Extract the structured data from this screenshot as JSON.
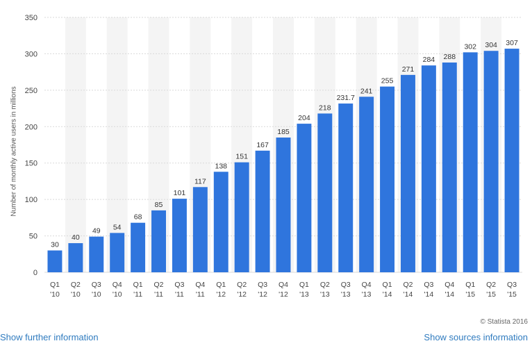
{
  "chart_data": {
    "type": "bar",
    "ylabel": "Number of monthly active users in millions",
    "ylim": [
      0,
      350
    ],
    "yticks": [
      0,
      50,
      100,
      150,
      200,
      250,
      300,
      350
    ],
    "grid": true,
    "categories": [
      [
        "Q1",
        "'10"
      ],
      [
        "Q2",
        "'10"
      ],
      [
        "Q3",
        "'10"
      ],
      [
        "Q4",
        "'10"
      ],
      [
        "Q1",
        "'11"
      ],
      [
        "Q2",
        "'11"
      ],
      [
        "Q3",
        "'11"
      ],
      [
        "Q4",
        "'11"
      ],
      [
        "Q1",
        "'12"
      ],
      [
        "Q2",
        "'12"
      ],
      [
        "Q3",
        "'12"
      ],
      [
        "Q4",
        "'12"
      ],
      [
        "Q1",
        "'13"
      ],
      [
        "Q2",
        "'13"
      ],
      [
        "Q3",
        "'13"
      ],
      [
        "Q4",
        "'13"
      ],
      [
        "Q1",
        "'14"
      ],
      [
        "Q2",
        "'14"
      ],
      [
        "Q3",
        "'14"
      ],
      [
        "Q4",
        "'14"
      ],
      [
        "Q1",
        "'15"
      ],
      [
        "Q2",
        "'15"
      ],
      [
        "Q3",
        "'15"
      ]
    ],
    "values": [
      30,
      40,
      49,
      54,
      68,
      85,
      101,
      117,
      138,
      151,
      167,
      185,
      204,
      218,
      231.7,
      241,
      255,
      271,
      284,
      288,
      302,
      304,
      307
    ],
    "value_labels": [
      "30",
      "40",
      "49",
      "54",
      "68",
      "85",
      "101",
      "117",
      "138",
      "151",
      "167",
      "185",
      "204",
      "218",
      "231.7",
      "241",
      "255",
      "271",
      "284",
      "288",
      "302",
      "304",
      "307"
    ],
    "colors": {
      "bar": "#2f75dd",
      "band": "#f4f4f4",
      "grid": "#d9d9d9"
    }
  },
  "footer": {
    "copyright": "© Statista 2016",
    "further_info": "Show further information",
    "sources_info": "Show sources information"
  }
}
